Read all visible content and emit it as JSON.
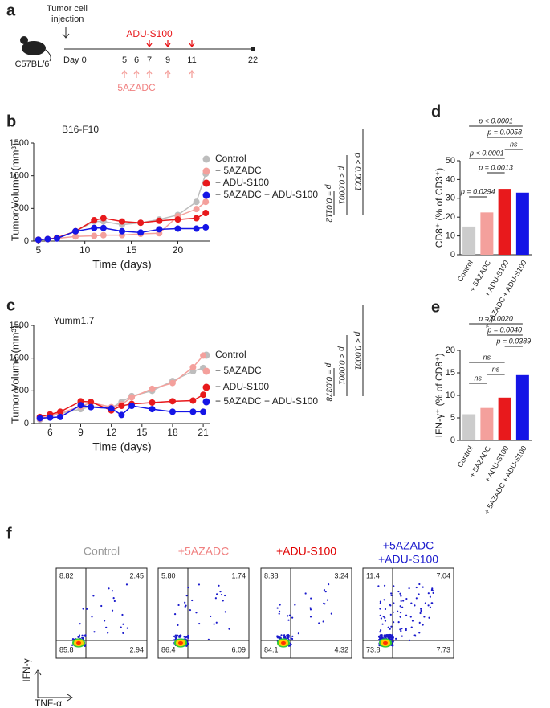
{
  "panel_a": {
    "panel": "a",
    "strain": "C57BL/6",
    "injection_label": [
      "Tumor cell",
      "injection"
    ],
    "day0": "Day 0",
    "days": [
      5,
      6,
      7,
      9,
      11,
      22
    ],
    "treatment_1": "ADU-S100",
    "treatment_2": "5AZADC"
  },
  "chart_data": [
    {
      "panel": "b",
      "type": "line",
      "title": "B16-F10",
      "x_label": "Time (days)",
      "y_label": "Tumor Volume (mm³)",
      "x": [
        5,
        6,
        7,
        9,
        11,
        12,
        14,
        16,
        18,
        20,
        22,
        23
      ],
      "xlim": [
        4.5,
        23.5
      ],
      "xticks": [
        5,
        10,
        15,
        20
      ],
      "ylim": [
        0,
        1500
      ],
      "yticks": [
        0,
        500,
        1000,
        1500
      ],
      "series": [
        {
          "name": "Control",
          "color": "#bdbdbd",
          "values": [
            20,
            30,
            50,
            150,
            300,
            300,
            250,
            280,
            330,
            400,
            600,
            1030
          ]
        },
        {
          "name": "+ 5AZADC",
          "color": "#f4a09c",
          "values": [
            20,
            30,
            40,
            70,
            80,
            90,
            90,
            110,
            120,
            380,
            490,
            600
          ]
        },
        {
          "name": "+ ADU-S100",
          "color": "#e8191c",
          "values": [
            20,
            30,
            50,
            150,
            320,
            350,
            300,
            280,
            310,
            330,
            350,
            430
          ]
        },
        {
          "name": "+ 5AZADC + ADU-S100",
          "color": "#1515e6",
          "values": [
            20,
            30,
            40,
            150,
            200,
            200,
            150,
            130,
            180,
            190,
            190,
            210
          ]
        }
      ],
      "annotations": [
        "p < 0.0001",
        "p < 0.0001",
        "p = 0.0112"
      ]
    },
    {
      "panel": "c",
      "type": "line",
      "title": "Yumm1.7",
      "x_label": "Time (days)",
      "y_label": "Tumor Volume (mm³)",
      "x": [
        5,
        6,
        7,
        9,
        10,
        12,
        13,
        14,
        16,
        18,
        20,
        21
      ],
      "xlim": [
        4.4,
        21.7
      ],
      "xticks": [
        6,
        9,
        12,
        15,
        18,
        21
      ],
      "ylim": [
        0,
        1500
      ],
      "yticks": [
        0,
        500,
        1000,
        1500
      ],
      "series": [
        {
          "name": "Control",
          "color": "#bdbdbd",
          "values": [
            60,
            110,
            150,
            220,
            260,
            240,
            330,
            420,
            500,
            650,
            800,
            850
          ]
        },
        {
          "name": "+ 5AZADC",
          "color": "#f4a09c",
          "values": [
            70,
            120,
            160,
            260,
            320,
            250,
            290,
            400,
            530,
            620,
            860,
            1040
          ]
        },
        {
          "name": "+ ADU-S100",
          "color": "#e8191c",
          "values": [
            100,
            140,
            180,
            340,
            330,
            200,
            270,
            300,
            320,
            340,
            350,
            440
          ]
        },
        {
          "name": "+ 5AZADC + ADU-S100",
          "color": "#1515e6",
          "values": [
            80,
            90,
            100,
            280,
            250,
            230,
            130,
            270,
            220,
            180,
            180,
            180
          ]
        }
      ],
      "annotations": [
        "p < 0.0001",
        "p < 0.0001",
        "p = 0.0378"
      ]
    },
    {
      "panel": "d",
      "type": "bar",
      "y_label": "CD8⁺ (% of CD3⁺)",
      "categories": [
        "Control",
        "+ 5AZADC",
        "+ ADU-S100",
        "+ 5AZADC + ADU-S100"
      ],
      "values": [
        15,
        22.5,
        35,
        33
      ],
      "colors": [
        "#cccccc",
        "#f4a09c",
        "#e8191c",
        "#1515e6"
      ],
      "ylim": [
        0,
        50
      ],
      "yticks": [
        0,
        10,
        20,
        30,
        40,
        50
      ],
      "annotations": [
        "p = 0.0294",
        "p = 0.0013",
        "p < 0.0001",
        "ns",
        "p = 0.0058",
        "p < 0.0001"
      ]
    },
    {
      "panel": "e",
      "type": "bar",
      "y_label": "IFN-γ⁺ (% of CD8⁺)",
      "categories": [
        "Control",
        "+ 5AZADC",
        "+ ADU-S100",
        "+ 5AZADC + ADU-S100"
      ],
      "values": [
        5.8,
        7.2,
        9.5,
        14.5
      ],
      "colors": [
        "#cccccc",
        "#f4a09c",
        "#e8191c",
        "#1515e6"
      ],
      "ylim": [
        0,
        20
      ],
      "yticks": [
        0,
        5,
        10,
        15,
        20
      ],
      "annotations": [
        "ns",
        "ns",
        "ns",
        "p = 0.0389",
        "p = 0.0040",
        "p = 0.0020"
      ]
    }
  ],
  "panel_f": {
    "panel": "f",
    "x_label": "TNF-α",
    "y_label": "IFN-γ",
    "plots": [
      {
        "title": [
          "Control"
        ],
        "color": "#999999",
        "quadrants": [
          8.82,
          2.45,
          85.8,
          2.94
        ]
      },
      {
        "title": [
          "+5AZADC"
        ],
        "color": "#f08080",
        "quadrants": [
          {
            "value": 5.8,
            "label": "5.80"
          },
          1.74,
          86.4,
          6.09
        ]
      },
      {
        "title": [
          "+ADU-S100"
        ],
        "color": "#e00000",
        "quadrants": [
          8.38,
          3.24,
          84.1,
          4.32
        ]
      },
      {
        "title": [
          "+5AZADC",
          "+ADU-S100"
        ],
        "color": "#1a1acc",
        "quadrants": [
          11.4,
          7.04,
          73.8,
          7.73
        ]
      }
    ]
  }
}
